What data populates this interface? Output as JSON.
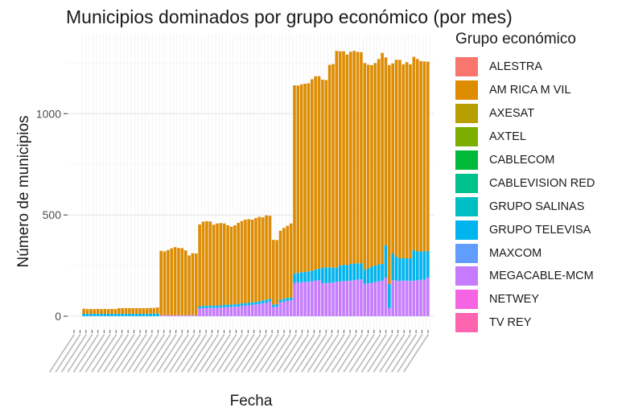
{
  "chart_data": {
    "type": "bar",
    "stacked": true,
    "title": "Municipios dominados por grupo económico (por mes)",
    "xlabel": "Fecha",
    "ylabel": "Número de municipios",
    "legend_title": "Grupo económico",
    "legend_position": "right",
    "grid": true,
    "ylim": [
      0,
      1350
    ],
    "y_ticks": [
      0,
      500,
      1000
    ],
    "x_tick_labels_note": "dense, overlapping date labels (e.g. \"jul 2012\" ... \"mar 2025\"); illegible in screenshot",
    "categories_range": [
      "jul 2012",
      "mar 2025"
    ],
    "series_colors": {
      "ALESTRA": "#F8766D",
      "AM RICA M VIL": "#DE8C00",
      "AXESAT": "#B79F00",
      "AXTEL": "#7CAE00",
      "CABLECOM": "#00BA38",
      "CABLEVISION RED": "#00C08B",
      "GRUPO SALINAS": "#00BFC4",
      "GRUPO TELEVISA": "#00B4F0",
      "MAXCOM": "#619CFF",
      "MEGACABLE-MCM": "#C77CFF",
      "NETWEY": "#F564E3",
      "TV REY": "#FF64B0"
    },
    "legend": [
      "ALESTRA",
      "AM RICA M VIL",
      "AXESAT",
      "AXTEL",
      "CABLECOM",
      "CABLEVISION RED",
      "GRUPO SALINAS",
      "GRUPO TELEVISA",
      "MAXCOM",
      "MEGACABLE-MCM",
      "NETWEY",
      "TV REY"
    ],
    "stack_order_bottom_to_top": [
      "MEGACABLE-MCM",
      "GRUPO TELEVISA",
      "AM RICA M VIL"
    ],
    "bars": [
      [
        0,
        12,
        25
      ],
      [
        0,
        12,
        23
      ],
      [
        0,
        12,
        24
      ],
      [
        0,
        12,
        23
      ],
      [
        0,
        12,
        24
      ],
      [
        0,
        12,
        23
      ],
      [
        0,
        12,
        24
      ],
      [
        0,
        12,
        23
      ],
      [
        0,
        12,
        24
      ],
      [
        0,
        12,
        23
      ],
      [
        0,
        12,
        28
      ],
      [
        0,
        12,
        28
      ],
      [
        0,
        12,
        28
      ],
      [
        0,
        12,
        28
      ],
      [
        0,
        12,
        28
      ],
      [
        0,
        12,
        28
      ],
      [
        0,
        12,
        28
      ],
      [
        0,
        12,
        28
      ],
      [
        0,
        12,
        28
      ],
      [
        0,
        13,
        28
      ],
      [
        0,
        13,
        28
      ],
      [
        0,
        13,
        30
      ],
      [
        5,
        0,
        318
      ],
      [
        5,
        0,
        315
      ],
      [
        5,
        0,
        322
      ],
      [
        5,
        0,
        330
      ],
      [
        5,
        0,
        336
      ],
      [
        5,
        0,
        332
      ],
      [
        5,
        0,
        331
      ],
      [
        5,
        0,
        320
      ],
      [
        5,
        0,
        295
      ],
      [
        5,
        0,
        306
      ],
      [
        5,
        0,
        305
      ],
      [
        38,
        10,
        405
      ],
      [
        40,
        11,
        416
      ],
      [
        40,
        11,
        418
      ],
      [
        41,
        11,
        416
      ],
      [
        41,
        11,
        400
      ],
      [
        42,
        11,
        405
      ],
      [
        43,
        11,
        406
      ],
      [
        44,
        12,
        402
      ],
      [
        45,
        12,
        392
      ],
      [
        46,
        12,
        384
      ],
      [
        47,
        12,
        390
      ],
      [
        48,
        13,
        400
      ],
      [
        50,
        13,
        407
      ],
      [
        52,
        13,
        412
      ],
      [
        54,
        13,
        412
      ],
      [
        56,
        13,
        408
      ],
      [
        58,
        13,
        414
      ],
      [
        60,
        13,
        418
      ],
      [
        64,
        14,
        410
      ],
      [
        66,
        14,
        418
      ],
      [
        72,
        14,
        410
      ],
      [
        45,
        12,
        320
      ],
      [
        48,
        12,
        316
      ],
      [
        68,
        14,
        340
      ],
      [
        72,
        14,
        350
      ],
      [
        76,
        14,
        356
      ],
      [
        78,
        14,
        366
      ],
      [
        165,
        45,
        930
      ],
      [
        166,
        48,
        925
      ],
      [
        168,
        49,
        928
      ],
      [
        168,
        50,
        930
      ],
      [
        170,
        52,
        928
      ],
      [
        172,
        52,
        946
      ],
      [
        175,
        55,
        955
      ],
      [
        178,
        57,
        950
      ],
      [
        162,
        78,
        928
      ],
      [
        164,
        77,
        925
      ],
      [
        165,
        76,
        1000
      ],
      [
        166,
        74,
        1005
      ],
      [
        170,
        70,
        1070
      ],
      [
        172,
        78,
        1058
      ],
      [
        174,
        80,
        1054
      ],
      [
        174,
        78,
        1040
      ],
      [
        176,
        82,
        1048
      ],
      [
        178,
        82,
        1050
      ],
      [
        180,
        80,
        1045
      ],
      [
        182,
        80,
        1042
      ],
      [
        160,
        70,
        1020
      ],
      [
        162,
        75,
        1005
      ],
      [
        165,
        80,
        995
      ],
      [
        168,
        82,
        1000
      ],
      [
        172,
        84,
        1014
      ],
      [
        176,
        82,
        1042
      ],
      [
        190,
        160,
        928
      ],
      [
        40,
        120,
        1080
      ],
      [
        178,
        132,
        938
      ],
      [
        176,
        118,
        972
      ],
      [
        174,
        112,
        980
      ],
      [
        176,
        110,
        958
      ],
      [
        176,
        110,
        968
      ],
      [
        174,
        112,
        958
      ],
      [
        176,
        150,
        955
      ],
      [
        178,
        142,
        950
      ],
      [
        180,
        140,
        940
      ],
      [
        180,
        140,
        938
      ],
      [
        190,
        132,
        935
      ]
    ]
  },
  "axes": {
    "y_tick_labels": [
      "0",
      "500",
      "1000"
    ]
  }
}
